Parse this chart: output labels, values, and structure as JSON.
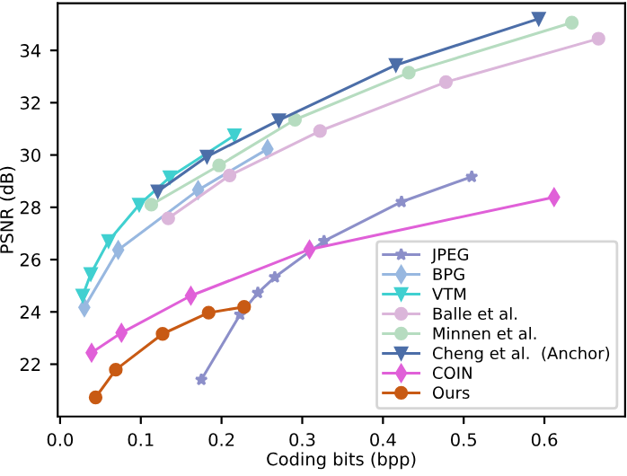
{
  "chart_data": {
    "type": "line",
    "xlabel": "Coding bits (bpp)",
    "ylabel": "PSNR (dB)",
    "xlim": [
      -0.003,
      0.7
    ],
    "ylim": [
      20,
      35.8
    ],
    "xticks": [
      {
        "value": 0.0,
        "label": "0.0"
      },
      0.1,
      0.2,
      0.3,
      0.4,
      0.5,
      0.6
    ],
    "yticks": [
      22,
      24,
      26,
      28,
      30,
      32,
      34
    ],
    "grid": false,
    "legend": "bottom right",
    "series": [
      {
        "name": "JPEG",
        "color": "#8c8fc9",
        "marker": "star",
        "x": [
          0.175,
          0.223,
          0.245,
          0.266,
          0.327,
          0.423,
          0.51
        ],
        "values": [
          21.41,
          23.9,
          24.73,
          25.33,
          26.71,
          28.21,
          29.17
        ]
      },
      {
        "name": "BPG",
        "color": "#98b8e0",
        "marker": "diamond",
        "x": [
          0.03,
          0.072,
          0.171,
          0.257
        ],
        "values": [
          24.17,
          26.37,
          28.66,
          30.23
        ]
      },
      {
        "name": "VTM",
        "color": "#40d0d0",
        "marker": "triangle",
        "x": [
          0.028,
          0.038,
          0.06,
          0.098,
          0.136,
          0.216
        ],
        "values": [
          24.62,
          25.45,
          26.71,
          28.1,
          29.15,
          30.75
        ]
      },
      {
        "name": "Balle et al.",
        "color": "#dbb6da",
        "marker": "circle",
        "x": [
          0.134,
          0.21,
          0.322,
          0.478,
          0.667
        ],
        "values": [
          27.58,
          29.22,
          30.92,
          32.79,
          34.45
        ]
      },
      {
        "name": "Minnen et al.",
        "color": "#b6dcc0",
        "marker": "circle",
        "x": [
          0.113,
          0.197,
          0.291,
          0.432,
          0.634
        ],
        "values": [
          28.1,
          29.6,
          31.35,
          33.15,
          35.06
        ]
      },
      {
        "name": "Cheng et al.  (Anchor)",
        "color": "#4c6ea8",
        "marker": "triangle",
        "x": [
          0.121,
          0.182,
          0.271,
          0.416,
          0.593
        ],
        "values": [
          28.61,
          29.94,
          31.33,
          33.44,
          35.21
        ]
      },
      {
        "name": "COIN",
        "color": "#e060d8",
        "marker": "diamond",
        "x": [
          0.039,
          0.076,
          0.162,
          0.309,
          0.612
        ],
        "values": [
          22.44,
          23.2,
          24.62,
          26.39,
          28.39
        ]
      },
      {
        "name": "Ours",
        "color": "#c85a14",
        "marker": "circle",
        "x": [
          0.044,
          0.069,
          0.127,
          0.184,
          0.228
        ],
        "values": [
          20.73,
          21.79,
          23.16,
          23.97,
          24.19
        ]
      }
    ]
  }
}
